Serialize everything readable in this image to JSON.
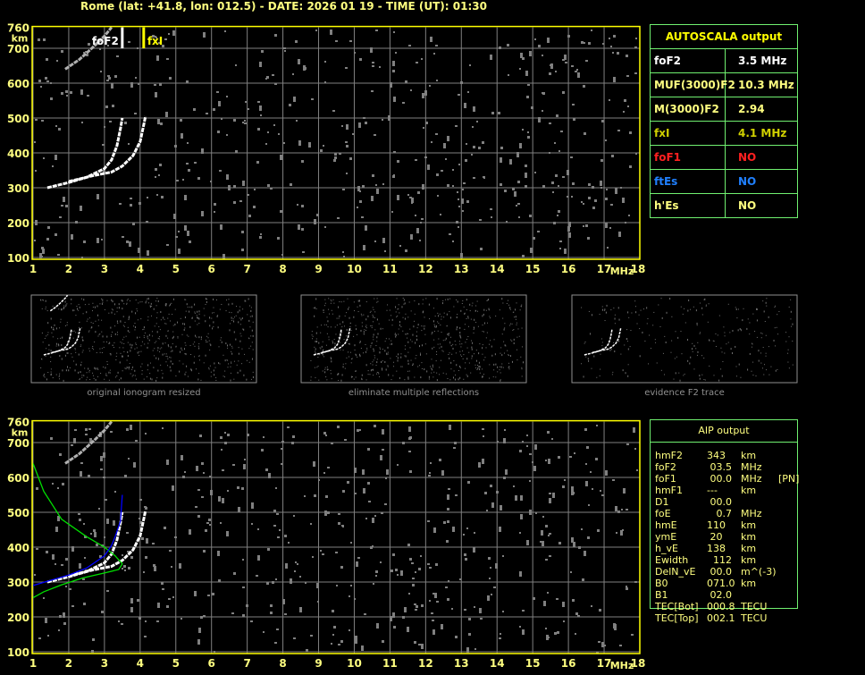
{
  "header": {
    "title": "Rome (lat: +41.8, lon: 012.5) - DATE: 2026 01 19 - TIME (UT): 01:30"
  },
  "colors": {
    "axis_label": "#ffff80",
    "frame": "#ffff00",
    "grid": "#808080",
    "table_border": "#70f070",
    "profile": "#00e000",
    "aip_trace": "#0000ff",
    "foF1": "#ff2020",
    "ftEs": "#2080ff"
  },
  "autoscala": {
    "title": "AUTOSCALA output",
    "rows": [
      {
        "label": "foF2",
        "value": "3.5 MHz",
        "color": "#ffffff"
      },
      {
        "label": "MUF(3000)F2",
        "value": "10.3 MHz",
        "color": "#ffff80"
      },
      {
        "label": "M(3000)F2",
        "value": "2.94",
        "color": "#ffff80"
      },
      {
        "label": "fxI",
        "value": "4.1 MHz",
        "color": "#d0d000"
      },
      {
        "label": "foF1",
        "value": "NO",
        "color": "#ff2020"
      },
      {
        "label": "ftEs",
        "value": "NO",
        "color": "#2080ff"
      },
      {
        "label": "h'Es",
        "value": "NO",
        "color": "#ffff80"
      }
    ]
  },
  "aip": {
    "title": "AIP output",
    "rows": [
      {
        "name": "hmF2",
        "value": "343",
        "unit": "km",
        "extra": ""
      },
      {
        "name": "foF2",
        "value": " 03.5",
        "unit": "MHz",
        "extra": ""
      },
      {
        "name": "foF1",
        "value": " 00.0",
        "unit": "MHz",
        "extra": "[PN]"
      },
      {
        "name": "hmF1",
        "value": "---",
        "unit": "km",
        "extra": ""
      },
      {
        "name": "D1",
        "value": " 00.0",
        "unit": "",
        "extra": ""
      },
      {
        "name": "foE",
        "value": "   0.7",
        "unit": "MHz",
        "extra": ""
      },
      {
        "name": "hmE",
        "value": "110",
        "unit": "km",
        "extra": ""
      },
      {
        "name": "ymE",
        "value": " 20",
        "unit": "km",
        "extra": ""
      },
      {
        "name": "h_vE",
        "value": "138",
        "unit": "km",
        "extra": ""
      },
      {
        "name": "Ewidth",
        "value": "  112",
        "unit": "km",
        "extra": ""
      },
      {
        "name": "DelN_vE",
        "value": " 00.0",
        "unit": "m^(-3)",
        "extra": ""
      },
      {
        "name": "B0",
        "value": "071.0",
        "unit": "km",
        "extra": ""
      },
      {
        "name": "B1",
        "value": " 02.0",
        "unit": "",
        "extra": ""
      },
      {
        "name": "TEC[Bot]",
        "value": "000.8",
        "unit": "TECU",
        "extra": ""
      },
      {
        "name": "TEC[Top]",
        "value": "002.1",
        "unit": "TECU",
        "extra": ""
      }
    ]
  },
  "thumbnails": [
    {
      "caption": "original ionogram resized"
    },
    {
      "caption": "eliminate multiple reflections"
    },
    {
      "caption": "evidence F2 trace"
    }
  ],
  "chart_data": [
    {
      "type": "scatter",
      "xlabel": "MHz",
      "ylabel": "km",
      "xlim": [
        1,
        18
      ],
      "ylim": [
        100,
        760
      ],
      "xticks": [
        "1",
        "2",
        "3",
        "4",
        "5",
        "6",
        "7",
        "8",
        "9",
        "10",
        "11",
        "12",
        "13",
        "14",
        "15",
        "16",
        "17",
        "18"
      ],
      "yticks": [
        "100",
        "200",
        "300",
        "400",
        "500",
        "600",
        "700",
        "760"
      ],
      "grid": true,
      "annotations": [
        {
          "text": "foF2",
          "x": 3.5
        },
        {
          "text": "fxI",
          "x": 4.1
        }
      ],
      "series": [
        {
          "color": "#ffffff",
          "points": [
            [
              1.4,
              300
            ],
            [
              2.0,
              315
            ],
            [
              2.5,
              330
            ],
            [
              3.0,
              355
            ],
            [
              3.2,
              380
            ],
            [
              3.35,
              420
            ],
            [
              3.45,
              470
            ],
            [
              3.5,
              500
            ]
          ]
        },
        {
          "color": "#ffffff",
          "points": [
            [
              2.0,
              318
            ],
            [
              2.7,
              335
            ],
            [
              3.2,
              345
            ],
            [
              3.5,
              362
            ],
            [
              3.8,
              392
            ],
            [
              4.0,
              432
            ],
            [
              4.1,
              480
            ],
            [
              4.15,
              505
            ]
          ]
        },
        {
          "color": "#b0b0b0",
          "points": [
            [
              1.9,
              640
            ],
            [
              2.3,
              668
            ],
            [
              2.7,
              705
            ],
            [
              3.0,
              735
            ],
            [
              3.2,
              760
            ]
          ]
        }
      ]
    },
    {
      "type": "line",
      "xlabel": "MHz",
      "ylabel": "km",
      "xlim": [
        1,
        18
      ],
      "ylim": [
        100,
        760
      ],
      "xticks": [
        "1",
        "2",
        "3",
        "4",
        "5",
        "6",
        "7",
        "8",
        "9",
        "10",
        "11",
        "12",
        "13",
        "14",
        "15",
        "16",
        "17",
        "18"
      ],
      "yticks": [
        "100",
        "200",
        "300",
        "400",
        "500",
        "600",
        "700",
        "760"
      ],
      "grid": true,
      "series": [
        {
          "color": "#ffffff",
          "points": [
            [
              1.4,
              300
            ],
            [
              2.0,
              315
            ],
            [
              2.5,
              330
            ],
            [
              3.0,
              355
            ],
            [
              3.2,
              380
            ],
            [
              3.35,
              420
            ],
            [
              3.45,
              470
            ],
            [
              3.5,
              500
            ]
          ]
        },
        {
          "color": "#ffffff",
          "points": [
            [
              2.0,
              318
            ],
            [
              2.7,
              335
            ],
            [
              3.2,
              345
            ],
            [
              3.5,
              362
            ],
            [
              3.8,
              392
            ],
            [
              4.0,
              432
            ],
            [
              4.1,
              480
            ],
            [
              4.15,
              505
            ]
          ]
        },
        {
          "color": "#b0b0b0",
          "points": [
            [
              1.9,
              640
            ],
            [
              2.3,
              668
            ],
            [
              2.7,
              705
            ],
            [
              3.0,
              735
            ],
            [
              3.2,
              760
            ]
          ]
        },
        {
          "color": "#00e000",
          "points": [
            [
              1.0,
              640
            ],
            [
              1.3,
              560
            ],
            [
              1.8,
              480
            ],
            [
              2.5,
              430
            ],
            [
              3.0,
              400
            ],
            [
              3.3,
              375
            ],
            [
              3.5,
              352
            ],
            [
              3.4,
              336
            ],
            [
              3.0,
              326
            ],
            [
              2.4,
              312
            ],
            [
              1.8,
              292
            ],
            [
              1.3,
              272
            ],
            [
              1.0,
              255
            ]
          ]
        },
        {
          "color": "#0000ff",
          "points": [
            [
              1.0,
              290
            ],
            [
              1.5,
              305
            ],
            [
              2.0,
              320
            ],
            [
              2.5,
              340
            ],
            [
              3.0,
              375
            ],
            [
              3.2,
              405
            ],
            [
              3.3,
              430
            ],
            [
              3.45,
              475
            ],
            [
              3.5,
              550
            ]
          ]
        }
      ]
    }
  ]
}
